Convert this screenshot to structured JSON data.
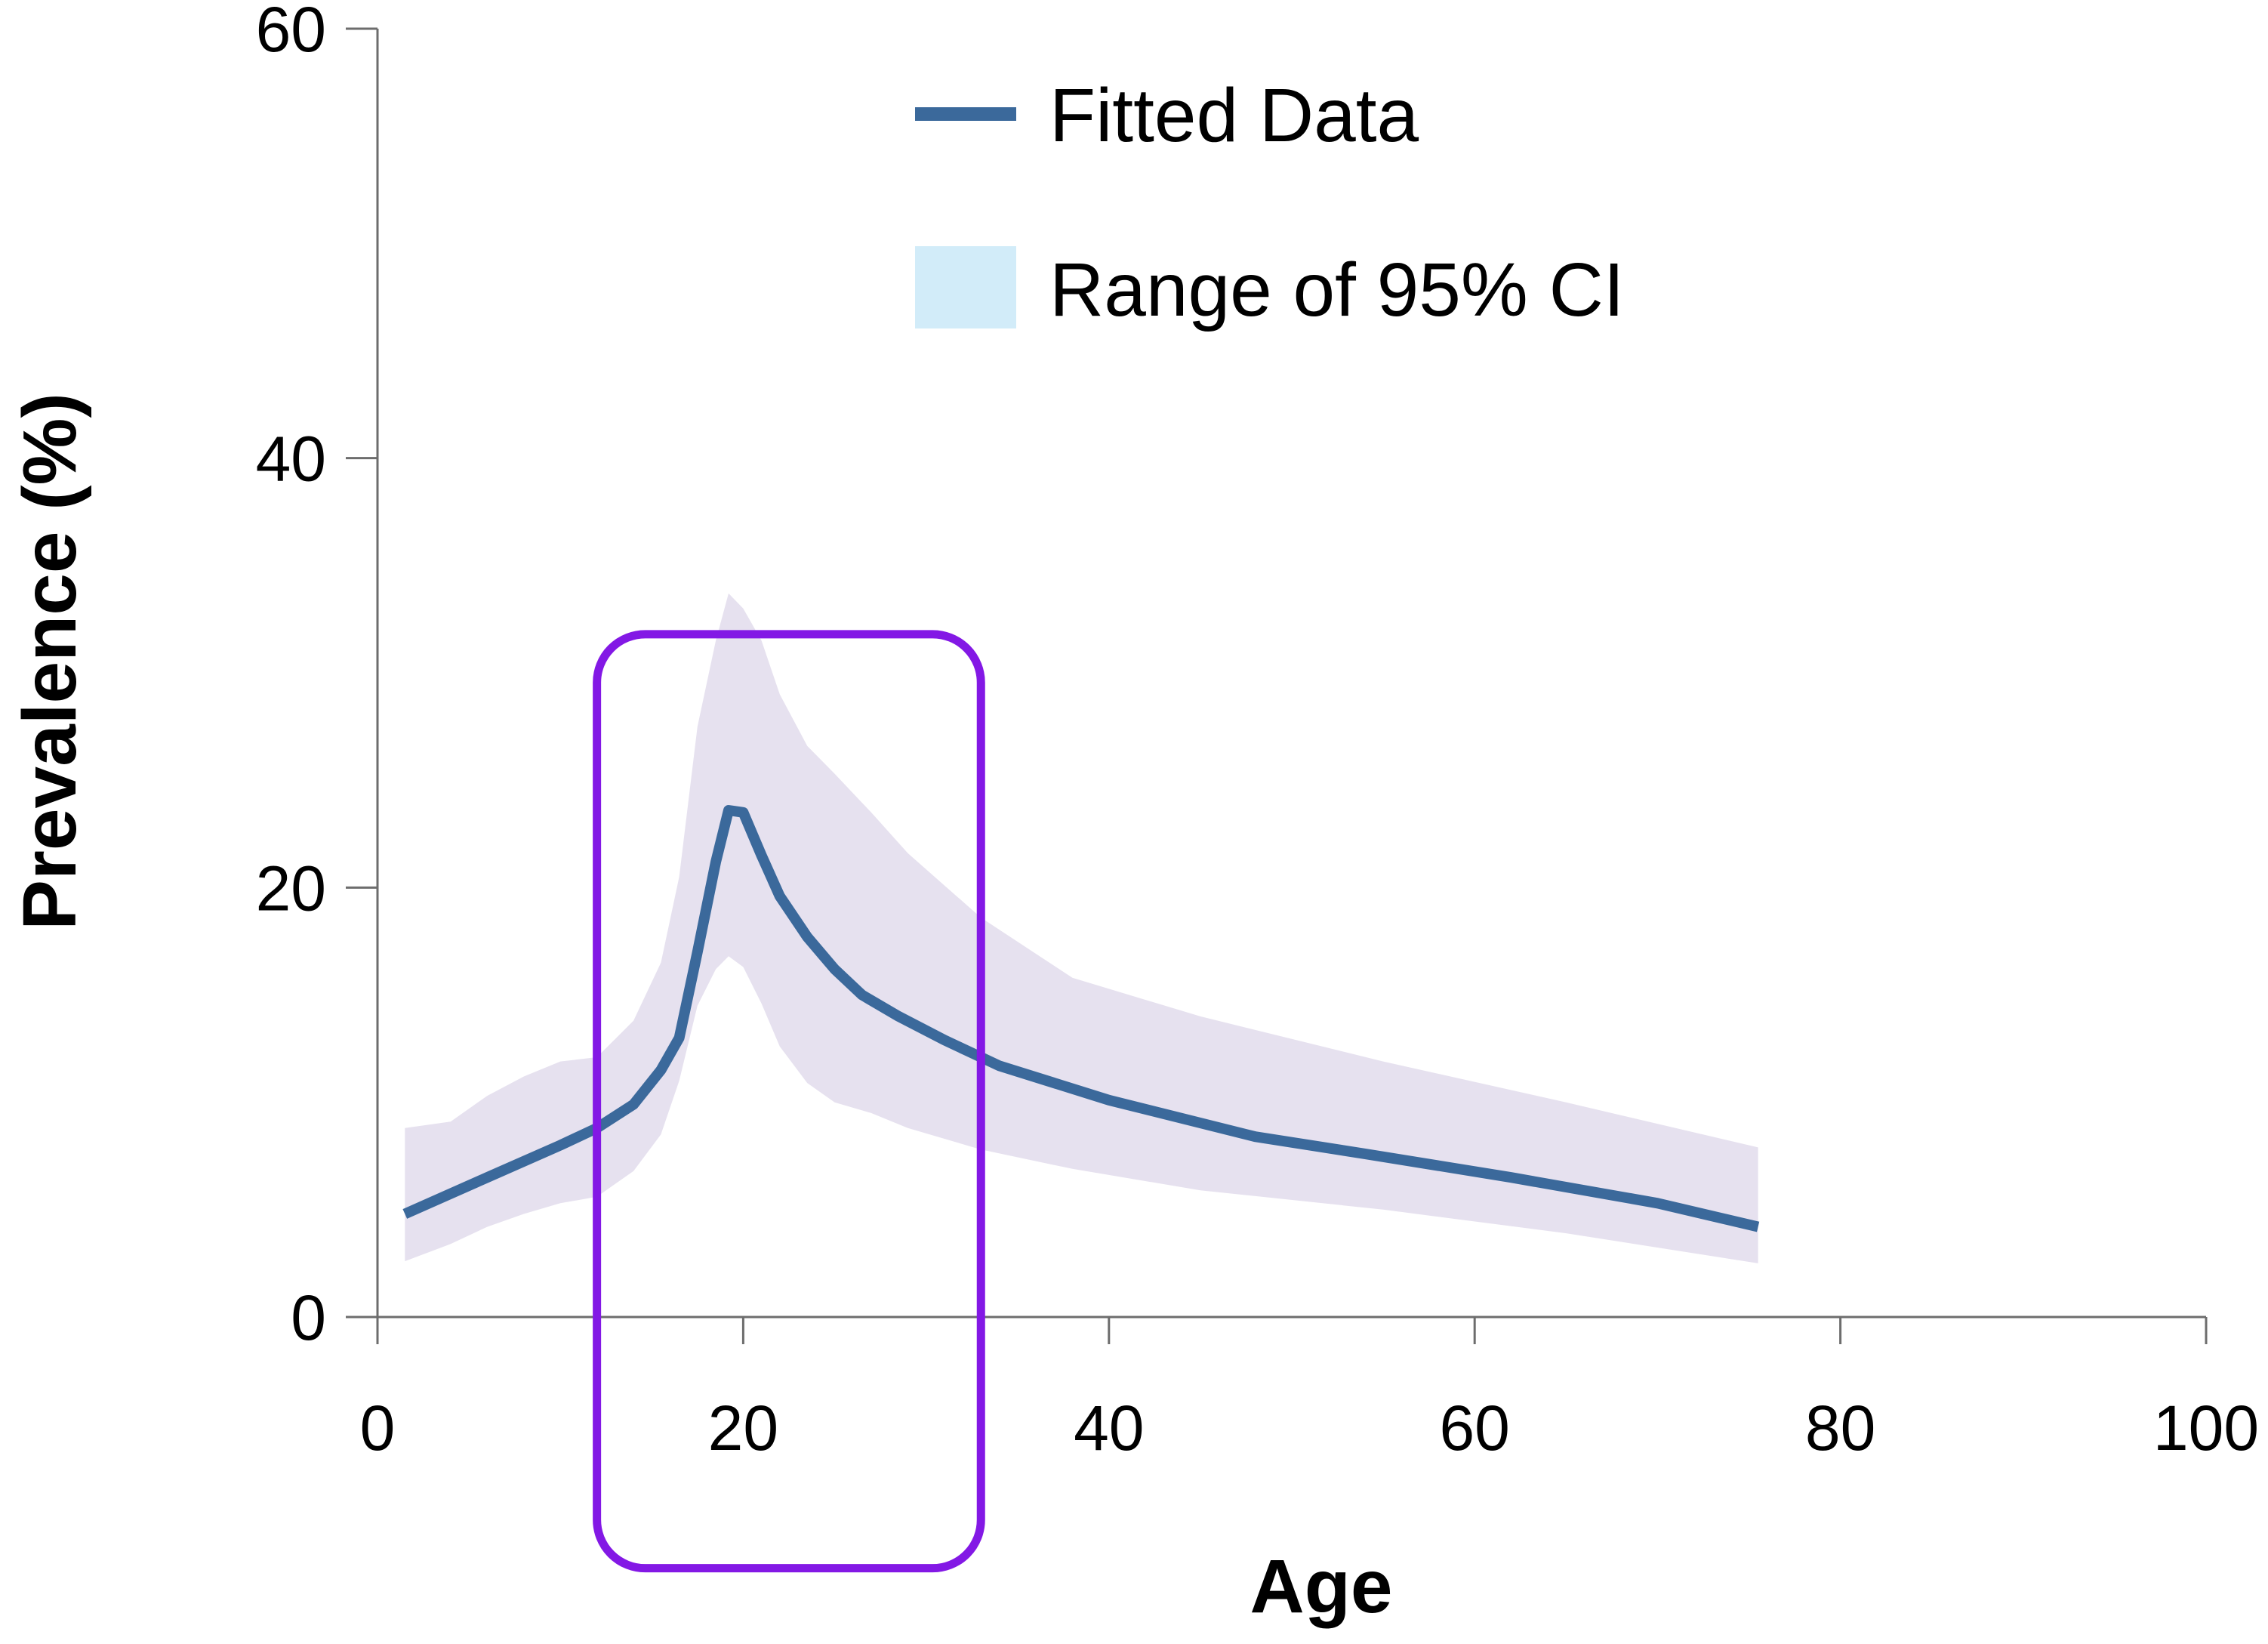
{
  "chart_data": {
    "type": "line",
    "xlabel": "Age",
    "ylabel": "Prevalence (%)",
    "xlim": [
      0,
      100
    ],
    "ylim": [
      0,
      60
    ],
    "xticks": [
      0,
      20,
      40,
      60,
      80,
      100
    ],
    "yticks": [
      0,
      20,
      40,
      60
    ],
    "grid": false,
    "legend": {
      "position": "top-center",
      "entries": [
        "Fitted Data",
        "Range of 95% CI"
      ]
    },
    "colors": {
      "line": "#3b699b",
      "band": "#e6e1ef",
      "legend_band": "#d2ecf9",
      "axis": "#6d6d6d",
      "highlight": "#8318e5"
    },
    "series": [
      {
        "name": "Fitted Data",
        "type": "line",
        "x": [
          1.5,
          6,
          10,
          12,
          14,
          15.5,
          16.5,
          17.5,
          18.5,
          19.2,
          20,
          21,
          22,
          23.5,
          25,
          26.5,
          28.5,
          31,
          34,
          40,
          48,
          54,
          62,
          70,
          75.5
        ],
        "y": [
          4.8,
          6.5,
          8.0,
          8.8,
          9.9,
          11.5,
          13.0,
          17.0,
          21.2,
          23.6,
          23.5,
          21.5,
          19.6,
          17.7,
          16.2,
          15.0,
          14.0,
          12.9,
          11.7,
          10.1,
          8.4,
          7.6,
          6.5,
          5.3,
          4.2
        ]
      },
      {
        "name": "Range of 95% CI",
        "type": "band",
        "x": [
          1.5,
          4,
          6,
          8,
          10,
          12,
          14,
          15.5,
          16.5,
          17.5,
          18.5,
          19.2,
          20,
          21,
          22,
          23.5,
          25,
          27,
          29,
          33,
          38,
          45,
          55,
          65,
          75.5
        ],
        "upper": [
          8.8,
          9.1,
          10.3,
          11.2,
          11.9,
          12.1,
          13.8,
          16.5,
          20.5,
          27.5,
          31.5,
          33.7,
          33.0,
          31.5,
          29.0,
          26.6,
          25.3,
          23.5,
          21.6,
          18.6,
          15.8,
          14.0,
          11.9,
          10.0,
          7.9
        ],
        "lower": [
          2.6,
          3.4,
          4.2,
          4.8,
          5.3,
          5.6,
          6.8,
          8.5,
          11.0,
          14.5,
          16.2,
          16.8,
          16.3,
          14.6,
          12.6,
          10.9,
          10.0,
          9.5,
          8.8,
          7.8,
          6.9,
          5.9,
          5.0,
          3.9,
          2.5
        ]
      }
    ],
    "annotations": [
      {
        "type": "rounded-rectangle",
        "x_range": [
          12,
          33
        ],
        "y_range": [
          -11.7,
          31.8
        ],
        "color": "#8318e5"
      }
    ]
  }
}
